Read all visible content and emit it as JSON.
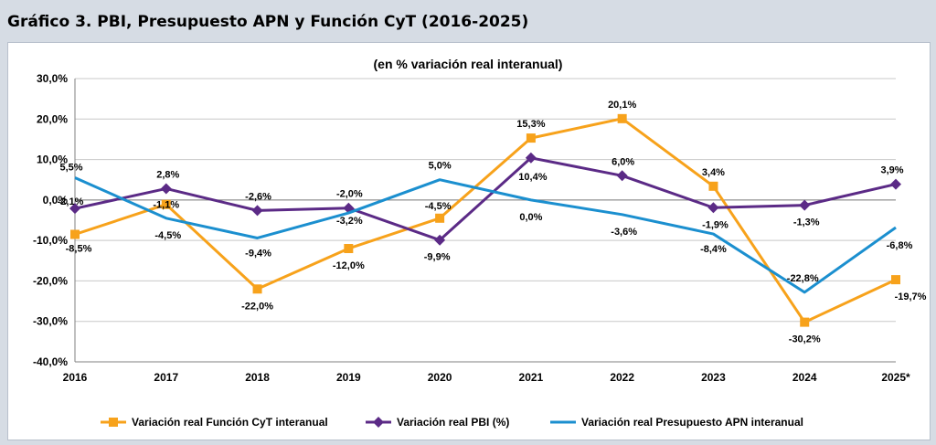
{
  "figure_title": "Gráfico 3. PBI, Presupuesto APN y Función CyT (2016-2025)",
  "chart_data": {
    "type": "line",
    "title": "(en % variación real interanual)",
    "xlabel": "",
    "ylabel": "",
    "categories": [
      "2016",
      "2017",
      "2018",
      "2019",
      "2020",
      "2021",
      "2022",
      "2023",
      "2024",
      "2025*"
    ],
    "ylim": [
      -40,
      30
    ],
    "yticks": [
      "30,0%",
      "20,0%",
      "10,0%",
      "0,0%",
      "-10,0%",
      "-20,0%",
      "-30,0%",
      "-40,0%"
    ],
    "grid": true,
    "legend_position": "bottom",
    "series": [
      {
        "name": "Variación real Función CyT interanual",
        "color": "#f7a21b",
        "marker": "square",
        "values": [
          -8.5,
          -1.1,
          -22.0,
          -12.0,
          -4.5,
          15.3,
          20.1,
          3.4,
          -30.2,
          -19.7
        ],
        "labels": [
          "-8,5%",
          "-1,1%",
          "-22,0%",
          "-12,0%",
          "-4,5%",
          "15,3%",
          "20,1%",
          "3,4%",
          "-30,2%",
          "-19,7%"
        ]
      },
      {
        "name": "Variación real PBI (%)",
        "color": "#5b2a86",
        "marker": "diamond",
        "values": [
          -2.1,
          2.8,
          -2.6,
          -2.0,
          -9.9,
          10.4,
          6.0,
          -1.9,
          -1.3,
          3.9
        ],
        "labels": [
          "-2,1%",
          "2,8%",
          "-2,6%",
          "-2,0%",
          "-9,9%",
          "10,4%",
          "6,0%",
          "-1,9%",
          "-1,3%",
          "3,9%"
        ]
      },
      {
        "name": "Variación real Presupuesto APN interanual",
        "color": "#1b8fcf",
        "marker": "none",
        "values": [
          5.5,
          -4.5,
          -9.4,
          -3.2,
          5.0,
          0.0,
          -3.6,
          -8.4,
          -22.8,
          -6.8
        ],
        "labels": [
          "5,5%",
          "-4,5%",
          "-9,4%",
          "-3,2%",
          "5,0%",
          "0,0%",
          "-3,6%",
          "-8,4%",
          "-22,8%",
          "-6,8%"
        ]
      }
    ]
  }
}
